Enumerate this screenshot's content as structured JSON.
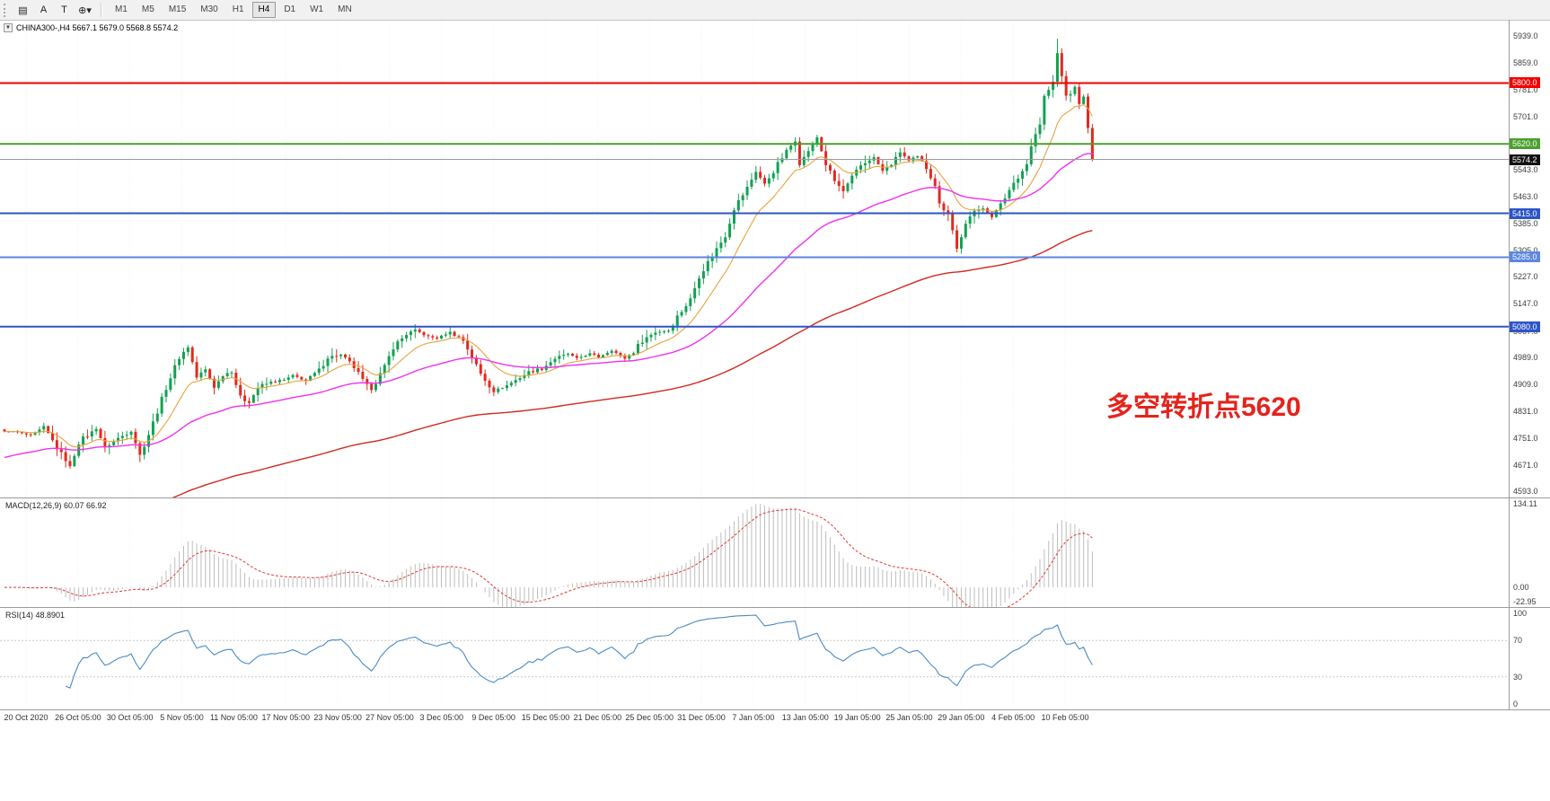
{
  "toolbar": {
    "buttons": [
      {
        "name": "indicators-grid",
        "glyph": "▤"
      },
      {
        "name": "text-tool",
        "glyph": "A"
      },
      {
        "name": "label-tool",
        "glyph": "T"
      },
      {
        "name": "cursor-tool",
        "glyph": "⊕",
        "caret": "▾"
      }
    ],
    "timeframes": [
      "M1",
      "M5",
      "M15",
      "M30",
      "H1",
      "H4",
      "D1",
      "W1",
      "MN"
    ],
    "active_timeframe": "H4"
  },
  "chart": {
    "symbol_caret": "▼",
    "symbol_header": "CHINA300-,H4  5667.1 5679.0 5568.8 5574.2",
    "annotation": {
      "text": "多空转折点5620",
      "color": "#e3241d"
    }
  },
  "price_axis": {
    "labels": [
      "5939.0",
      "5859.0",
      "5781.0",
      "5701.0",
      "5623.0",
      "5543.0",
      "5463.0",
      "5385.0",
      "5305.0",
      "5227.0",
      "5147.0",
      "5067.0",
      "4989.0",
      "4909.0",
      "4831.0",
      "4751.0",
      "4671.0",
      "4593.0"
    ]
  },
  "hlines": [
    {
      "label": "5800.0",
      "value": 5800.0,
      "color": "#f20000",
      "width": 2
    },
    {
      "label": "5620.0",
      "value": 5620.0,
      "color": "#4ba02e",
      "width": 2
    },
    {
      "label": "5574.2",
      "value": 5574.2,
      "color": "#111111",
      "line_color": "#9a9a9a",
      "width": 1
    },
    {
      "label": "5415.0",
      "value": 5415.0,
      "color": "#2d55c8",
      "width": 2
    },
    {
      "label": "5285.0",
      "value": 5285.0,
      "color": "#5c86e0",
      "width": 2
    },
    {
      "label": "5080.0",
      "value": 5080.0,
      "color": "#2d55c8",
      "width": 2
    }
  ],
  "macd": {
    "title": "MACD(12,26,9) 60.07 66.92",
    "fast": 12,
    "slow": 26,
    "signal": 9,
    "current_main": 60.07,
    "current_signal": 66.92,
    "axis_labels": [
      "134.11",
      "0.00",
      "-22.95"
    ],
    "histogram_color": "#bdbdbd",
    "signal_color": "#dd3b33"
  },
  "rsi": {
    "title": "RSI(14) 48.8901",
    "period": 14,
    "current": 48.8901,
    "levels": [
      70,
      30
    ],
    "axis_labels": [
      "100",
      "70",
      "30",
      "0"
    ],
    "line_color": "#4a8bc2"
  },
  "time_axis": {
    "labels": [
      "20 Oct 2020",
      "26 Oct 05:00",
      "30 Oct 05:00",
      "5 Nov 05:00",
      "11 Nov 05:00",
      "17 Nov 05:00",
      "23 Nov 05:00",
      "27 Nov 05:00",
      "3 Dec 05:00",
      "9 Dec 05:00",
      "15 Dec 05:00",
      "21 Dec 05:00",
      "25 Dec 05:00",
      "31 Dec 05:00",
      "7 Jan 05:00",
      "13 Jan 05:00",
      "19 Jan 05:00",
      "25 Jan 05:00",
      "29 Jan 05:00",
      "4 Feb 05:00",
      "10 Feb 05:00"
    ]
  },
  "chart_data": {
    "type": "candlestick",
    "title": "CHINA300- H4",
    "bars": 250,
    "y_axis": {
      "min": 4575,
      "max": 5987
    },
    "axis_tick_values": [
      5939,
      5859,
      5781,
      5701,
      5623,
      5543,
      5463,
      5385,
      5305,
      5227,
      5147,
      5067,
      4989,
      4909,
      4831,
      4751,
      4671,
      4593
    ],
    "last_bar_ohlc": {
      "open": 5667.1,
      "high": 5679.0,
      "low": 5568.8,
      "close": 5574.2
    },
    "up_color": "#12a152",
    "down_color": "#e02a1f",
    "close_path_anchors": [
      [
        2,
        4770
      ],
      [
        6,
        4758
      ],
      [
        9,
        4782
      ],
      [
        12,
        4722
      ],
      [
        15,
        4665
      ],
      [
        17,
        4738
      ],
      [
        21,
        4780
      ],
      [
        23,
        4722
      ],
      [
        26,
        4750
      ],
      [
        29,
        4772
      ],
      [
        31,
        4700
      ],
      [
        33,
        4762
      ],
      [
        35,
        4830
      ],
      [
        37,
        4900
      ],
      [
        40,
        4990
      ],
      [
        42,
        5020
      ],
      [
        44,
        4930
      ],
      [
        46,
        4952
      ],
      [
        48,
        4900
      ],
      [
        50,
        4936
      ],
      [
        52,
        4950
      ],
      [
        54,
        4870
      ],
      [
        56,
        4856
      ],
      [
        58,
        4900
      ],
      [
        61,
        4916
      ],
      [
        64,
        4922
      ],
      [
        66,
        4936
      ],
      [
        69,
        4920
      ],
      [
        72,
        4950
      ],
      [
        74,
        4990
      ],
      [
        77,
        4996
      ],
      [
        80,
        4960
      ],
      [
        82,
        4920
      ],
      [
        84,
        4895
      ],
      [
        87,
        4960
      ],
      [
        89,
        5020
      ],
      [
        92,
        5058
      ],
      [
        94,
        5070
      ],
      [
        97,
        5050
      ],
      [
        99,
        5046
      ],
      [
        102,
        5064
      ],
      [
        105,
        5040
      ],
      [
        107,
        4990
      ],
      [
        109,
        4940
      ],
      [
        112,
        4890
      ],
      [
        115,
        4906
      ],
      [
        118,
        4930
      ],
      [
        120,
        4946
      ],
      [
        123,
        4956
      ],
      [
        126,
        4986
      ],
      [
        129,
        5000
      ],
      [
        131,
        4986
      ],
      [
        134,
        5000
      ],
      [
        136,
        4990
      ],
      [
        139,
        5010
      ],
      [
        142,
        4986
      ],
      [
        144,
        5006
      ],
      [
        146,
        5040
      ],
      [
        149,
        5064
      ],
      [
        152,
        5070
      ],
      [
        154,
        5110
      ],
      [
        157,
        5160
      ],
      [
        159,
        5230
      ],
      [
        162,
        5290
      ],
      [
        165,
        5350
      ],
      [
        167,
        5430
      ],
      [
        170,
        5490
      ],
      [
        172,
        5540
      ],
      [
        174,
        5500
      ],
      [
        177,
        5560
      ],
      [
        179,
        5600
      ],
      [
        181,
        5630
      ],
      [
        182,
        5560
      ],
      [
        184,
        5600
      ],
      [
        186,
        5640
      ],
      [
        188,
        5560
      ],
      [
        190,
        5510
      ],
      [
        192,
        5480
      ],
      [
        194,
        5520
      ],
      [
        196,
        5556
      ],
      [
        199,
        5580
      ],
      [
        201,
        5540
      ],
      [
        203,
        5560
      ],
      [
        205,
        5596
      ],
      [
        207,
        5570
      ],
      [
        209,
        5580
      ],
      [
        211,
        5550
      ],
      [
        213,
        5500
      ],
      [
        214,
        5440
      ],
      [
        216,
        5420
      ],
      [
        218,
        5310
      ],
      [
        220,
        5380
      ],
      [
        222,
        5420
      ],
      [
        224,
        5432
      ],
      [
        226,
        5400
      ],
      [
        228,
        5450
      ],
      [
        230,
        5480
      ],
      [
        232,
        5520
      ],
      [
        234,
        5560
      ],
      [
        235,
        5620
      ],
      [
        237,
        5680
      ],
      [
        238,
        5760
      ],
      [
        240,
        5800
      ],
      [
        241,
        5888
      ],
      [
        242,
        5820
      ],
      [
        243,
        5762
      ],
      [
        245,
        5782
      ],
      [
        246,
        5742
      ],
      [
        247,
        5760
      ],
      [
        249,
        5574.2
      ]
    ],
    "overrides": [
      {
        "bar": 241,
        "high": 5931
      }
    ],
    "moving_averages": [
      {
        "name": "fast",
        "period": 12,
        "seed": 4770,
        "color": "#e8a33d",
        "width": 1.1
      },
      {
        "name": "mid",
        "period": 48,
        "seed": 4690,
        "color": "#f031f0",
        "width": 1.4
      },
      {
        "name": "slow",
        "period": 150,
        "seed": 4440,
        "color": "#d02a20",
        "width": 1.4
      }
    ]
  }
}
